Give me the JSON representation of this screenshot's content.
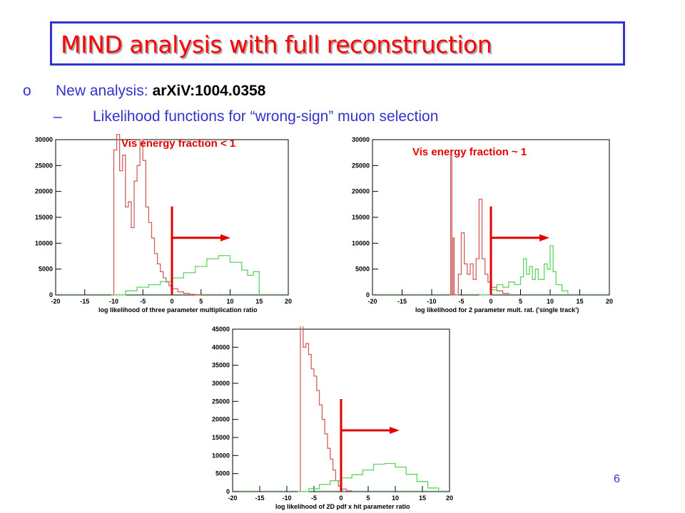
{
  "slide": {
    "title": "MIND analysis with full reconstruction",
    "bullet": {
      "symbol": "o",
      "text": "New analysis:",
      "reference": "arXiV:1004.0358"
    },
    "sub_bullet": {
      "symbol": "–",
      "text": "Likelihood functions for “wrong-sign” muon selection"
    },
    "page_number": "6"
  },
  "colors": {
    "title": "#ff0000",
    "text": "#3333cc",
    "background_hist": "#d06060",
    "signal_hist": "#5fd35f",
    "cut_marker": "#e00000"
  },
  "chart_data": [
    {
      "type": "histogram",
      "annotation": "Vis energy fraction < 1",
      "xlabel": "log likelihood of three parameter multiplication ratio",
      "xlim": [
        -20,
        20
      ],
      "ylim": [
        0,
        30000
      ],
      "x_ticks": [
        "-20",
        "-15",
        "-10",
        "-5",
        "0",
        "5",
        "10",
        "15",
        "20"
      ],
      "y_ticks": [
        "0",
        "5000",
        "10000",
        "15000",
        "20000",
        "25000",
        "30000"
      ],
      "cut_value": 0,
      "cut_direction": "right",
      "series": [
        {
          "role": "background",
          "x": [
            -10.5,
            -10,
            -9.5,
            -9,
            -8.5,
            -8,
            -7.5,
            -7,
            -6.5,
            -6,
            -5.5,
            -5,
            -4.5,
            -4,
            -3.5,
            -3,
            -2.5,
            -2,
            -1.5,
            -1,
            -0.5,
            0,
            1,
            2,
            3,
            4,
            5
          ],
          "y": [
            0,
            28000,
            31000,
            24000,
            27000,
            17000,
            18000,
            13000,
            22000,
            25000,
            30000,
            26000,
            17000,
            14000,
            11000,
            8000,
            6000,
            4500,
            3300,
            2500,
            1800,
            1200,
            600,
            300,
            100,
            50,
            0
          ]
        },
        {
          "role": "signal",
          "x": [
            -10,
            -8,
            -6,
            -4,
            -2,
            0,
            2,
            4,
            6,
            8,
            10,
            12,
            13,
            14,
            15
          ],
          "y": [
            0,
            800,
            1500,
            2000,
            2600,
            3300,
            4300,
            5500,
            7000,
            7600,
            6300,
            4800,
            3800,
            4500,
            0
          ]
        }
      ]
    },
    {
      "type": "histogram",
      "annotation": "Vis energy fraction ~ 1",
      "xlabel": "log likelihood for 2 parameter mult. rat. ('single track')",
      "xlim": [
        -20,
        20
      ],
      "ylim": [
        0,
        30000
      ],
      "x_ticks": [
        "-20",
        "-15",
        "-10",
        "-5",
        "0",
        "5",
        "10",
        "15",
        "20"
      ],
      "y_ticks": [
        "0",
        "5000",
        "10000",
        "15000",
        "20000",
        "25000",
        "30000"
      ],
      "cut_value": 0,
      "cut_direction": "right",
      "series": [
        {
          "role": "background",
          "x": [
            -7,
            -6.8,
            -6.6,
            -6.4,
            -6.2,
            -5.5,
            -5,
            -4.5,
            -4,
            -3.5,
            -3,
            -2.5,
            -2,
            -1.5,
            -1,
            -0.5,
            0,
            1,
            2,
            3
          ],
          "y": [
            0,
            27000,
            0,
            11000,
            0,
            4000,
            12000,
            6000,
            4000,
            6000,
            3000,
            7000,
            18500,
            7000,
            4000,
            2500,
            1500,
            800,
            300,
            0
          ]
        },
        {
          "role": "signal",
          "x": [
            -2,
            0,
            1,
            2,
            3,
            4,
            5,
            5.5,
            6,
            6.5,
            7,
            7.5,
            8,
            9,
            9.5,
            10,
            10.5,
            11,
            12,
            13
          ],
          "y": [
            0,
            1000,
            2000,
            1500,
            2500,
            2000,
            3500,
            7000,
            4000,
            5500,
            3000,
            5000,
            3000,
            6000,
            5000,
            9500,
            4500,
            2000,
            800,
            0
          ]
        }
      ]
    },
    {
      "type": "histogram",
      "xlabel": "log likelihood of 2D pdf x hit parameter ratio",
      "xlim": [
        -20,
        20
      ],
      "ylim": [
        0,
        45000
      ],
      "x_ticks": [
        "-20",
        "-15",
        "-10",
        "-5",
        "0",
        "5",
        "10",
        "15",
        "20"
      ],
      "y_ticks": [
        "0",
        "5000",
        "10000",
        "15000",
        "20000",
        "25000",
        "30000",
        "35000",
        "40000",
        "45000"
      ],
      "cut_value": 0,
      "cut_direction": "right",
      "series": [
        {
          "role": "background",
          "x": [
            -8,
            -7.5,
            -7,
            -6.5,
            -6,
            -5.5,
            -5,
            -4.5,
            -4,
            -3.5,
            -3,
            -2.5,
            -2,
            -1.5,
            -1,
            -0.5,
            0,
            1,
            2
          ],
          "y": [
            0,
            46000,
            40000,
            41000,
            38000,
            34000,
            32000,
            28000,
            24000,
            20000,
            16000,
            12000,
            9000,
            6000,
            3000,
            1500,
            700,
            200,
            0
          ]
        },
        {
          "role": "signal",
          "x": [
            -8,
            -6,
            -4,
            -2,
            0,
            2,
            4,
            6,
            8,
            10,
            12,
            14,
            16,
            18
          ],
          "y": [
            0,
            800,
            2000,
            3000,
            3800,
            4700,
            6000,
            7600,
            7800,
            6800,
            4800,
            2800,
            1000,
            0
          ]
        }
      ]
    }
  ]
}
